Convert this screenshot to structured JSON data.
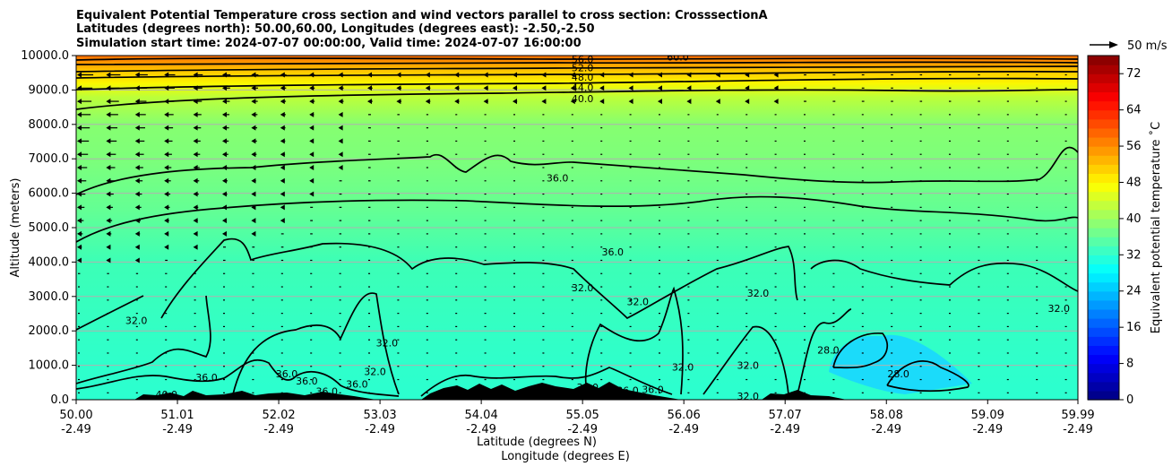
{
  "chart_data": {
    "type": "heatmap",
    "title_lines": [
      "Equivalent Potential Temperature cross section and wind vectors parallel to cross section: CrosssectionA",
      "Latitudes (degrees north): 50.00,60.00, Longitudes (degrees east): -2.50,-2.50",
      "Simulation start time: 2024-07-07 00:00:00, Valid time: 2024-07-07 16:00:00"
    ],
    "xlabel": "Latitude (degrees N)",
    "xlabel2": "Longitude (degrees E)",
    "ylabel": "Altitude (meters)",
    "x_ticks_lat": [
      "50.00",
      "51.01",
      "52.02",
      "53.03",
      "54.04",
      "55.05",
      "56.06",
      "57.07",
      "58.08",
      "59.09",
      "59.99"
    ],
    "x_ticks_lon": [
      "-2.49",
      "-2.49",
      "-2.49",
      "-2.49",
      "-2.49",
      "-2.49",
      "-2.49",
      "-2.49",
      "-2.49",
      "-2.49",
      "-2.49"
    ],
    "xlim": [
      50.0,
      59.99
    ],
    "y_ticks": [
      "0.0",
      "1000.0",
      "2000.0",
      "3000.0",
      "4000.0",
      "5000.0",
      "6000.0",
      "7000.0",
      "8000.0",
      "9000.0",
      "10000.0"
    ],
    "ylim": [
      0,
      10000
    ],
    "grid": "horizontal",
    "colorbar": {
      "label": "Equivalent potential temperature ˚C",
      "ticks": [
        "0",
        "8",
        "16",
        "24",
        "32",
        "40",
        "48",
        "56",
        "64",
        "72"
      ],
      "range": [
        0,
        76
      ],
      "colormap": "jet"
    },
    "quiver_key": "50 m/s",
    "contour_labels": [
      {
        "text": "40.0",
        "lat": 50.9,
        "alt": 150
      },
      {
        "text": "36.0",
        "lat": 51.3,
        "alt": 650
      },
      {
        "text": "36.0",
        "lat": 52.1,
        "alt": 750
      },
      {
        "text": "36.0",
        "lat": 52.3,
        "alt": 550
      },
      {
        "text": "36.0",
        "lat": 52.5,
        "alt": 250
      },
      {
        "text": "36.0",
        "lat": 52.8,
        "alt": 450
      },
      {
        "text": "32.0",
        "lat": 50.6,
        "alt": 2300
      },
      {
        "text": "32.0",
        "lat": 53.1,
        "alt": 1650
      },
      {
        "text": "32.0",
        "lat": 52.98,
        "alt": 820
      },
      {
        "text": "36.0",
        "lat": 54.8,
        "alt": 6450
      },
      {
        "text": "36.0",
        "lat": 55.35,
        "alt": 4300
      },
      {
        "text": "32.0",
        "lat": 55.05,
        "alt": 3250
      },
      {
        "text": "32.0",
        "lat": 55.6,
        "alt": 2850
      },
      {
        "text": "36.0",
        "lat": 55.1,
        "alt": 360
      },
      {
        "text": "36.0",
        "lat": 55.5,
        "alt": 270
      },
      {
        "text": "36.0",
        "lat": 55.75,
        "alt": 300
      },
      {
        "text": "32.0",
        "lat": 56.05,
        "alt": 950
      },
      {
        "text": "32.0",
        "lat": 56.7,
        "alt": 1000
      },
      {
        "text": "32.0",
        "lat": 56.7,
        "alt": 100
      },
      {
        "text": "32.0",
        "lat": 56.8,
        "alt": 3100
      },
      {
        "text": "28.0",
        "lat": 57.5,
        "alt": 1450
      },
      {
        "text": "28.0",
        "lat": 58.2,
        "alt": 750
      },
      {
        "text": "32.0",
        "lat": 59.8,
        "alt": 2650
      },
      {
        "text": "40.0",
        "lat": 55.05,
        "alt": 8750
      },
      {
        "text": "44.0",
        "lat": 55.05,
        "alt": 9080
      },
      {
        "text": "48.0",
        "lat": 55.05,
        "alt": 9380
      },
      {
        "text": "52.0",
        "lat": 55.05,
        "alt": 9650
      },
      {
        "text": "56.0",
        "lat": 55.05,
        "alt": 9900
      },
      {
        "text": "60.0",
        "lat": 56.0,
        "alt": 9960
      }
    ]
  }
}
